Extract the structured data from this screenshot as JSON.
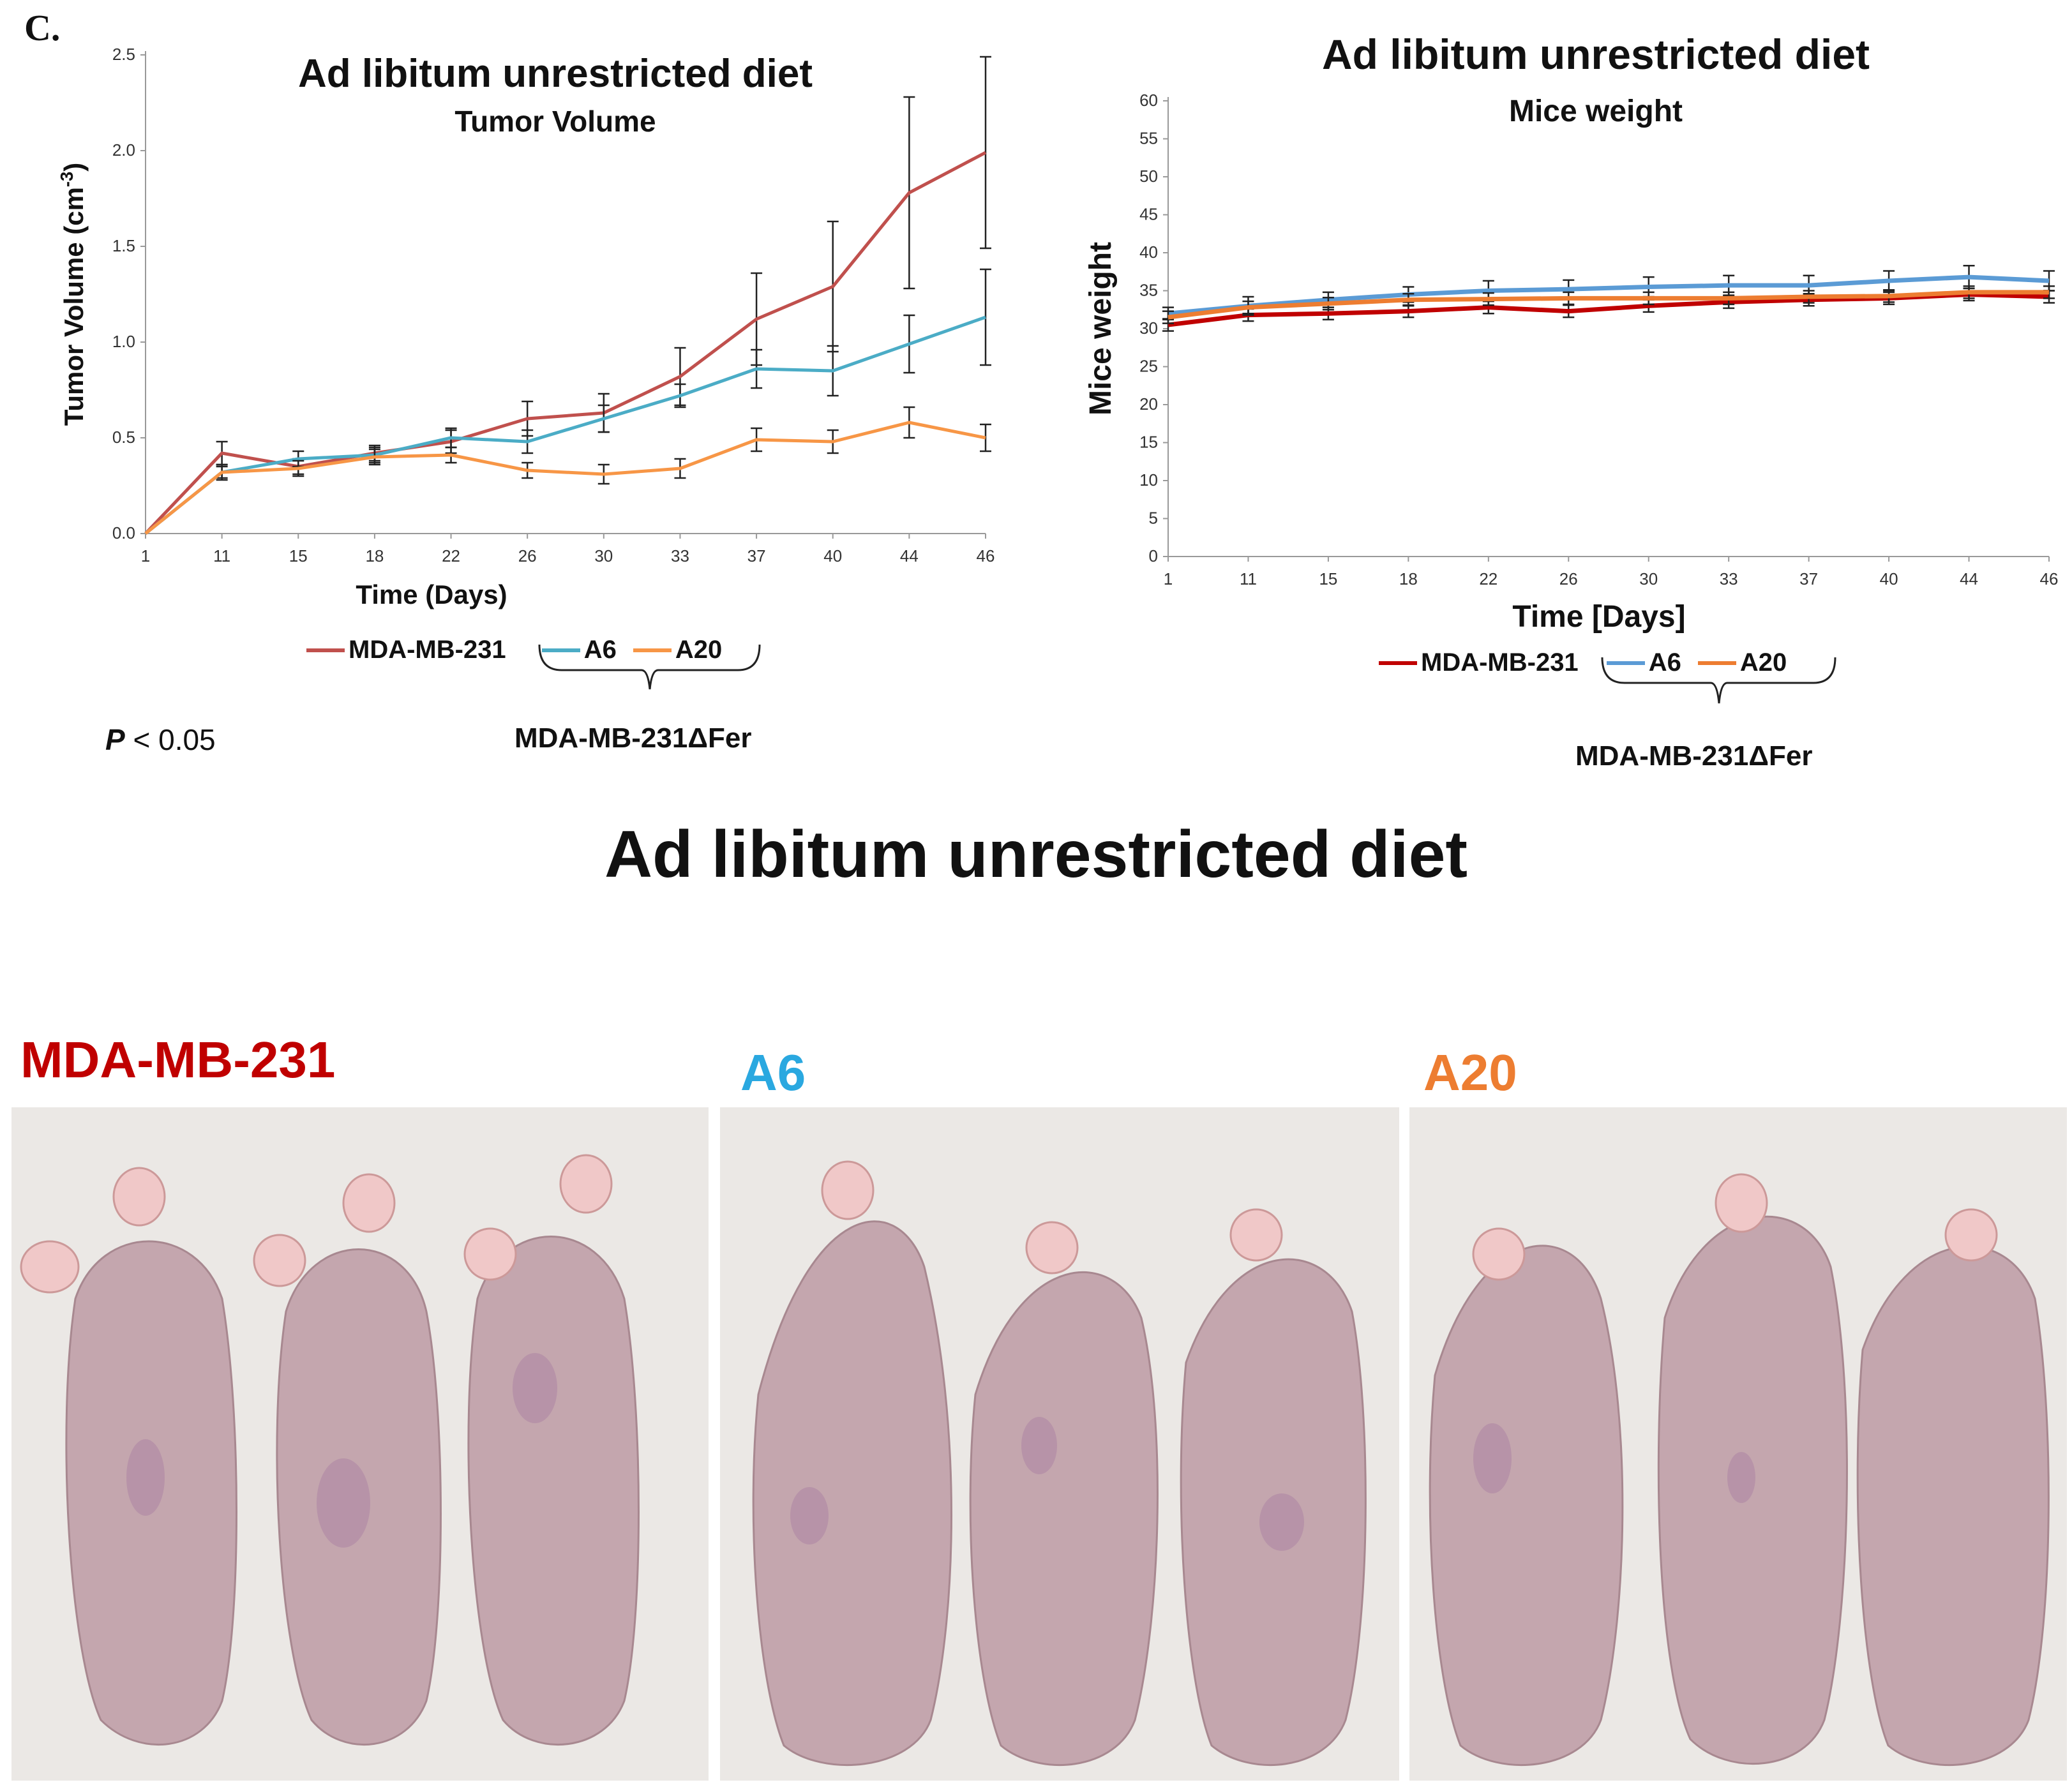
{
  "panel_label": "C.",
  "colors": {
    "mda_left": "#c0504d",
    "a6_left": "#4bacc6",
    "a20_left": "#f79646",
    "mda_right": "#c00000",
    "a6_right": "#5b9bd5",
    "a20_right": "#ed7d31",
    "label_mda": "#c00000",
    "label_a6": "#2aa8e0",
    "label_a20": "#ed7d31"
  },
  "chart_data": [
    {
      "type": "line",
      "title": "Ad libitum unrestricted diet",
      "subtitle": "Tumor Volume",
      "xlabel": "Time (Days)",
      "ylabel": "Tumor Volume (cm",
      "ylabel_sup": "-3",
      "ylabel_close": ")",
      "categories": [
        "1",
        "11",
        "15",
        "18",
        "22",
        "26",
        "30",
        "33",
        "37",
        "40",
        "44",
        "46"
      ],
      "yticks": [
        "0.0",
        "0.5",
        "1.0",
        "1.5",
        "2.0",
        "2.5"
      ],
      "ylim": [
        0,
        2.5
      ],
      "series": [
        {
          "name": "MDA-MB-231",
          "color_key": "mda_left",
          "values": [
            0.0,
            0.42,
            0.35,
            0.42,
            0.48,
            0.6,
            0.63,
            0.82,
            1.12,
            1.29,
            1.78,
            1.99
          ],
          "errors": [
            0,
            0.06,
            0.04,
            0.04,
            0.06,
            0.09,
            0.1,
            0.15,
            0.24,
            0.34,
            0.5,
            0.5
          ]
        },
        {
          "name": "A6",
          "color_key": "a6_left",
          "values": [
            0.0,
            0.32,
            0.39,
            0.41,
            0.5,
            0.48,
            0.6,
            0.72,
            0.86,
            0.85,
            0.99,
            1.13
          ],
          "errors": [
            0,
            0.04,
            0.04,
            0.04,
            0.05,
            0.06,
            0.07,
            0.06,
            0.1,
            0.13,
            0.15,
            0.25
          ]
        },
        {
          "name": "A20",
          "color_key": "a20_left",
          "values": [
            0.0,
            0.32,
            0.34,
            0.4,
            0.41,
            0.33,
            0.31,
            0.34,
            0.49,
            0.48,
            0.58,
            0.5
          ],
          "errors": [
            0,
            0.03,
            0.04,
            0.04,
            0.04,
            0.04,
            0.05,
            0.05,
            0.06,
            0.06,
            0.08,
            0.07
          ]
        }
      ],
      "legend": {
        "items": [
          "MDA-MB-231",
          "A6",
          "A20"
        ],
        "group_label": "MDA-MB-231ΔFer",
        "placement": "bottom"
      },
      "p_value_prefix": "P",
      "p_value_rest": " < 0.05"
    },
    {
      "type": "line",
      "title": "Ad libitum unrestricted diet",
      "subtitle": "Mice weight",
      "xlabel": "Time [Days]",
      "ylabel": "Mice weight",
      "categories": [
        "1",
        "11",
        "15",
        "18",
        "22",
        "26",
        "30",
        "33",
        "37",
        "40",
        "44",
        "46"
      ],
      "yticks": [
        "0",
        "5",
        "10",
        "15",
        "20",
        "25",
        "30",
        "35",
        "40",
        "45",
        "50",
        "55",
        "60"
      ],
      "ylim": [
        0,
        60
      ],
      "series": [
        {
          "name": "MDA-MB-231",
          "color_key": "mda_right",
          "values": [
            30.5,
            31.8,
            32.0,
            32.3,
            32.8,
            32.3,
            33.0,
            33.5,
            33.8,
            34.0,
            34.5,
            34.2
          ],
          "errors": [
            0.8,
            0.8,
            0.8,
            0.8,
            0.8,
            0.8,
            0.8,
            0.8,
            0.8,
            0.8,
            0.8,
            0.8
          ]
        },
        {
          "name": "A6",
          "color_key": "a6_right",
          "values": [
            32.0,
            33.0,
            33.8,
            34.5,
            35.0,
            35.2,
            35.5,
            35.7,
            35.7,
            36.3,
            36.8,
            36.3
          ],
          "errors": [
            0.8,
            1.2,
            1.0,
            1.0,
            1.3,
            1.2,
            1.3,
            1.3,
            1.3,
            1.3,
            1.5,
            1.3
          ]
        },
        {
          "name": "A20",
          "color_key": "a20_right",
          "values": [
            31.5,
            32.8,
            33.3,
            33.8,
            33.9,
            34.0,
            34.0,
            34.0,
            34.2,
            34.3,
            34.8,
            34.8
          ],
          "errors": [
            0.8,
            0.8,
            0.8,
            0.8,
            0.8,
            0.8,
            0.8,
            0.8,
            0.8,
            0.8,
            0.8,
            0.8
          ]
        }
      ],
      "legend": {
        "items": [
          "MDA-MB-231",
          "A6",
          "A20"
        ],
        "group_label": "MDA-MB-231ΔFer",
        "placement": "bottom"
      }
    }
  ],
  "photos": {
    "title": "Ad libitum unrestricted diet",
    "groups": [
      {
        "label": "MDA-MB-231",
        "color_key": "label_mda"
      },
      {
        "label": "A6",
        "color_key": "label_a6"
      },
      {
        "label": "A20",
        "color_key": "label_a20"
      }
    ]
  }
}
